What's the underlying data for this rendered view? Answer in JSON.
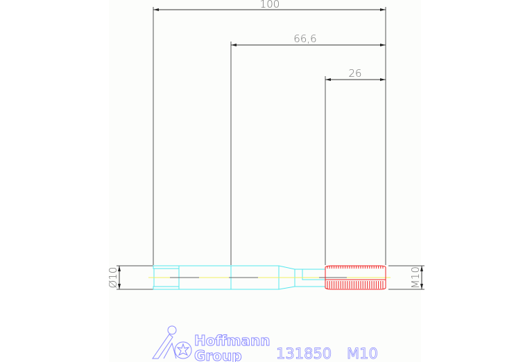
{
  "drawing": {
    "dimensions": {
      "overall_length": "100",
      "shank_to_tip": "66,6",
      "thread_length": "26",
      "shank_diameter": "Ø10",
      "thread_size": "M10"
    },
    "colors": {
      "background": "#fcfdfb",
      "dimension": "#505050",
      "tool_body": "#55e6ee",
      "thread": "#f02020",
      "centerline": "#f0f060",
      "title": "#8a8aff"
    }
  },
  "title_block": {
    "logo_line1": "Hoffmann",
    "logo_line2": "Group",
    "part_number": "131850",
    "size": "M10"
  }
}
